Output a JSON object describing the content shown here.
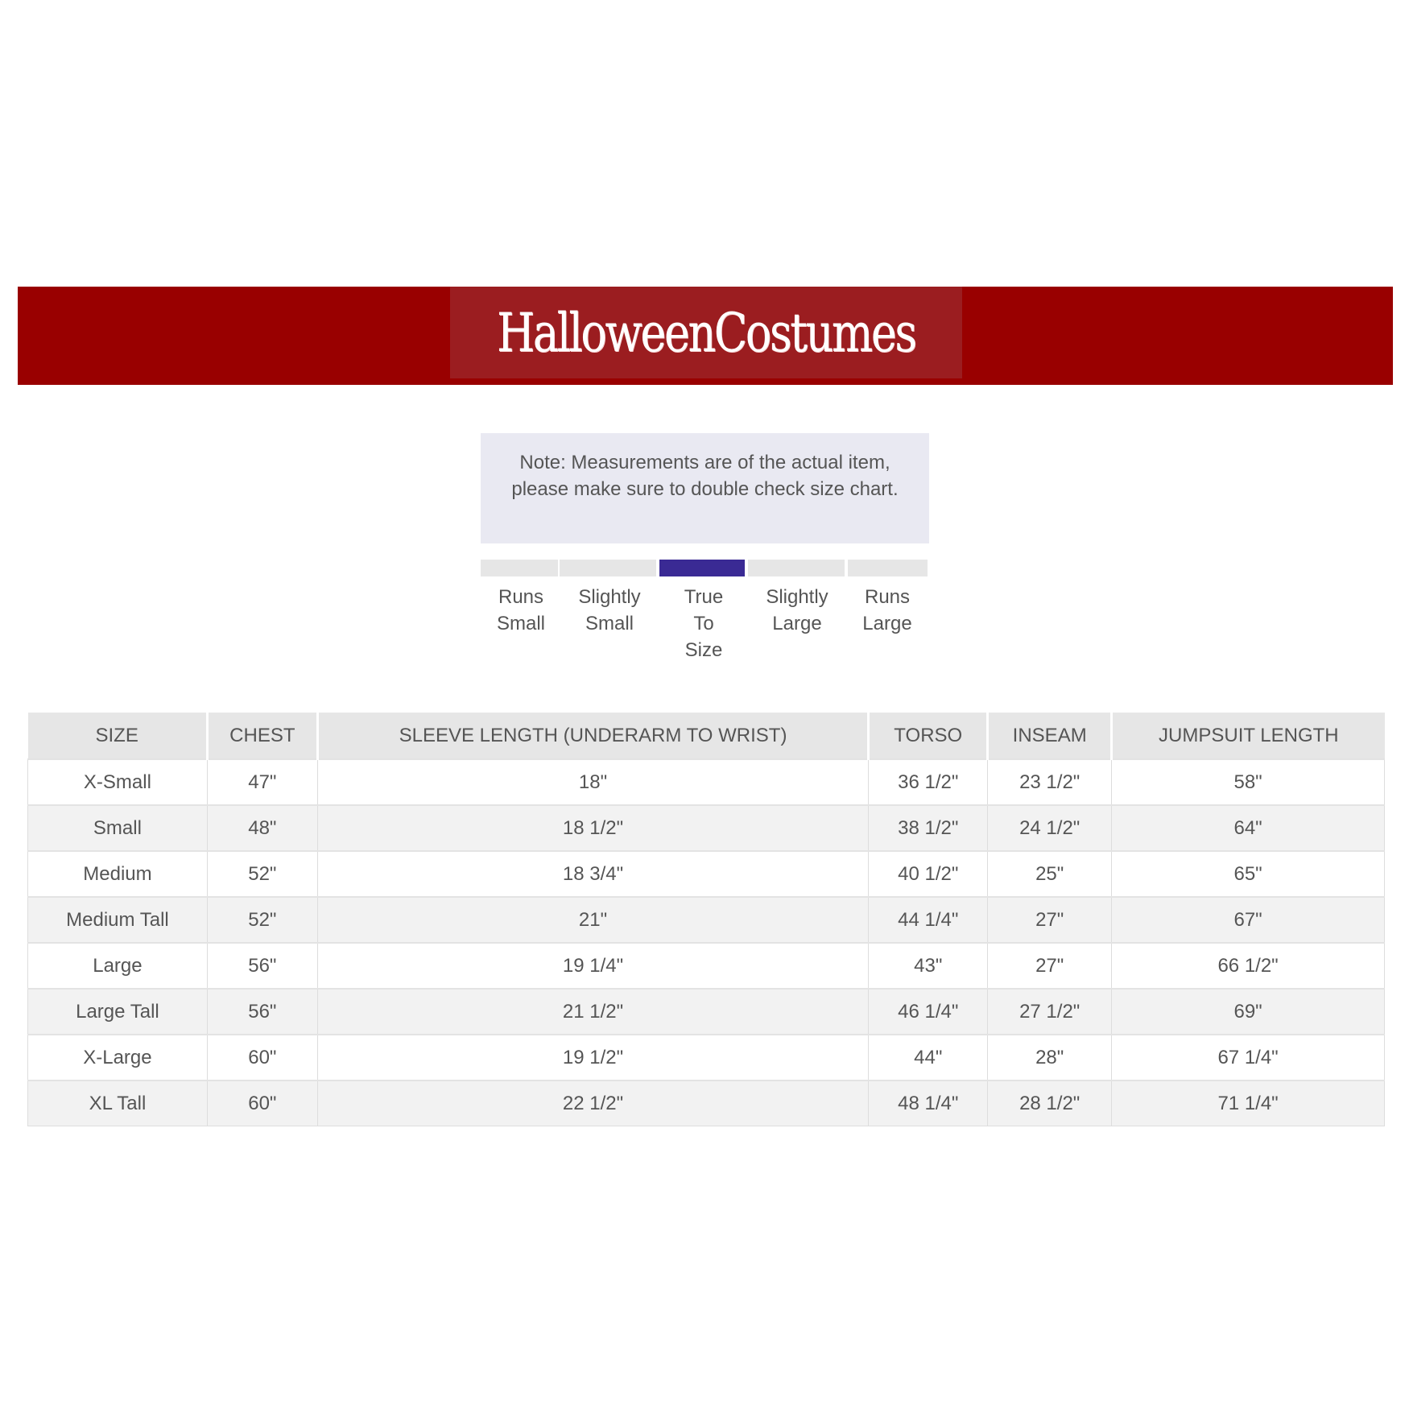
{
  "header": {
    "logo_text": "HalloweenCostumes",
    "brand_color": "#990000"
  },
  "note": "Note: Measurements are of the actual item, please make sure to double check size chart.",
  "fit_scale": {
    "options": [
      {
        "label_lines": [
          "Runs",
          "Small"
        ]
      },
      {
        "label_lines": [
          "Slightly",
          "Small"
        ]
      },
      {
        "label_lines": [
          "True",
          "To",
          "Size"
        ]
      },
      {
        "label_lines": [
          "Slightly",
          "Large"
        ]
      },
      {
        "label_lines": [
          "Runs",
          "Large"
        ]
      }
    ],
    "selected_index": 2,
    "selected_label": "True To Size",
    "active_color": "#3a2a94"
  },
  "table": {
    "headers": [
      "SIZE",
      "CHEST",
      "SLEEVE LENGTH (UNDERARM TO WRIST)",
      "TORSO",
      "INSEAM",
      "JUMPSUIT LENGTH"
    ],
    "rows": [
      [
        "X-Small",
        "47\"",
        "18\"",
        "36 1/2\"",
        "23 1/2\"",
        "58\""
      ],
      [
        "Small",
        "48\"",
        "18 1/2\"",
        "38 1/2\"",
        "24 1/2\"",
        "64\""
      ],
      [
        "Medium",
        "52\"",
        "18 3/4\"",
        "40 1/2\"",
        "25\"",
        "65\""
      ],
      [
        "Medium Tall",
        "52\"",
        "21\"",
        "44 1/4\"",
        "27\"",
        "67\""
      ],
      [
        "Large",
        "56\"",
        "19 1/4\"",
        "43\"",
        "27\"",
        "66 1/2\""
      ],
      [
        "Large Tall",
        "56\"",
        "21 1/2\"",
        "46 1/4\"",
        "27 1/2\"",
        "69\""
      ],
      [
        "X-Large",
        "60\"",
        "19 1/2\"",
        "44\"",
        "28\"",
        "67 1/4\""
      ],
      [
        "XL Tall",
        "60\"",
        "22 1/2\"",
        "48 1/4\"",
        "28 1/2\"",
        "71 1/4\""
      ]
    ]
  }
}
